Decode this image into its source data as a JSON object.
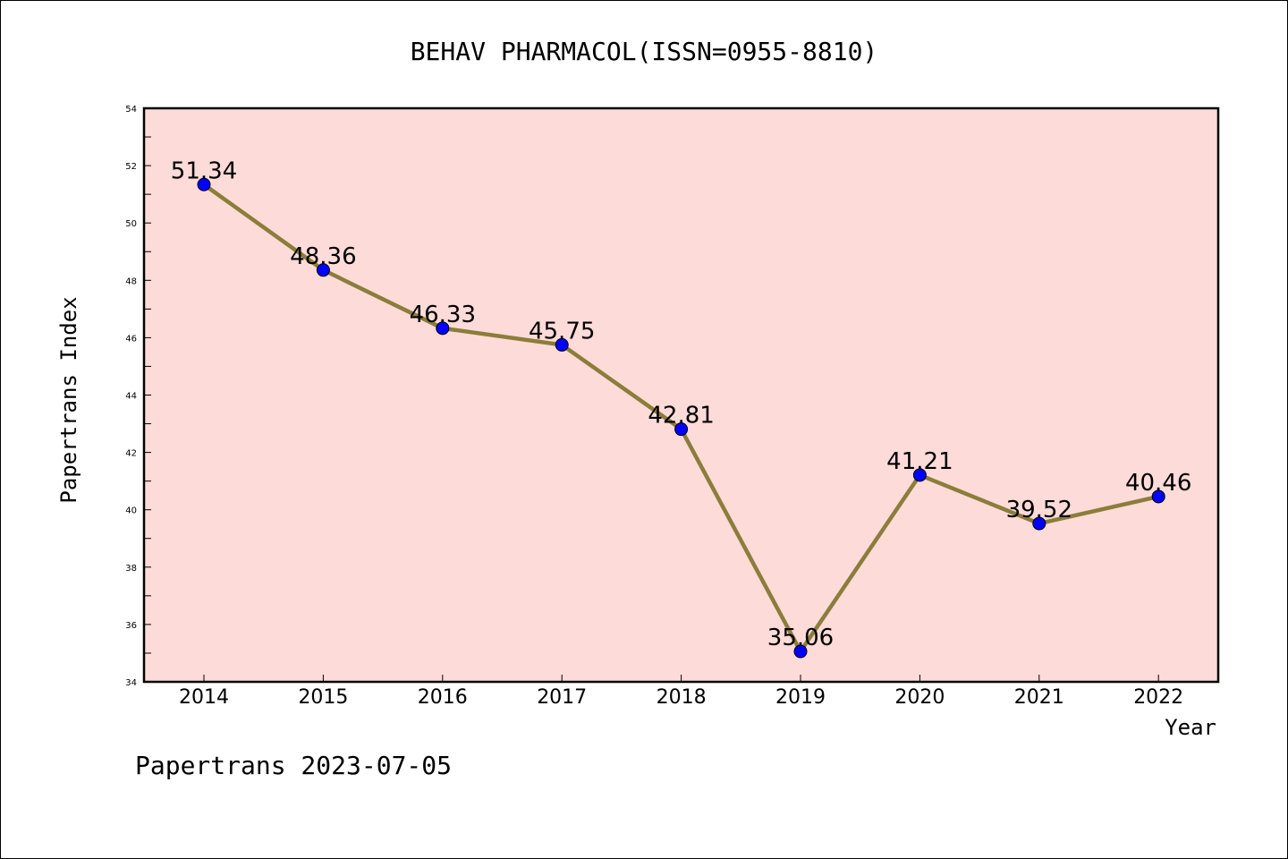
{
  "chart_data": {
    "type": "line",
    "title": "BEHAV PHARMACOL(ISSN=0955-8810)",
    "xlabel": "Year",
    "ylabel": "Papertrans Index",
    "categories": [
      "2014",
      "2015",
      "2016",
      "2017",
      "2018",
      "2019",
      "2020",
      "2021",
      "2022"
    ],
    "series": [
      {
        "values": [
          51.34,
          48.36,
          46.33,
          45.75,
          42.81,
          35.06,
          41.21,
          39.52,
          40.46
        ],
        "labels": [
          "51.34",
          "48.36",
          "46.33",
          "45.75",
          "42.81",
          "35.06",
          "41.21",
          "39.52",
          "40.46"
        ]
      }
    ],
    "ylim": [
      34,
      54
    ],
    "yticks": [
      "34",
      "36",
      "38",
      "40",
      "42",
      "44",
      "46",
      "48",
      "50",
      "52",
      "54"
    ],
    "grid": false,
    "colors": {
      "plot_background": "#fddbd8",
      "line": "#8b7d3a",
      "marker": "#0000ff"
    }
  },
  "footer": "Papertrans 2023-07-05"
}
